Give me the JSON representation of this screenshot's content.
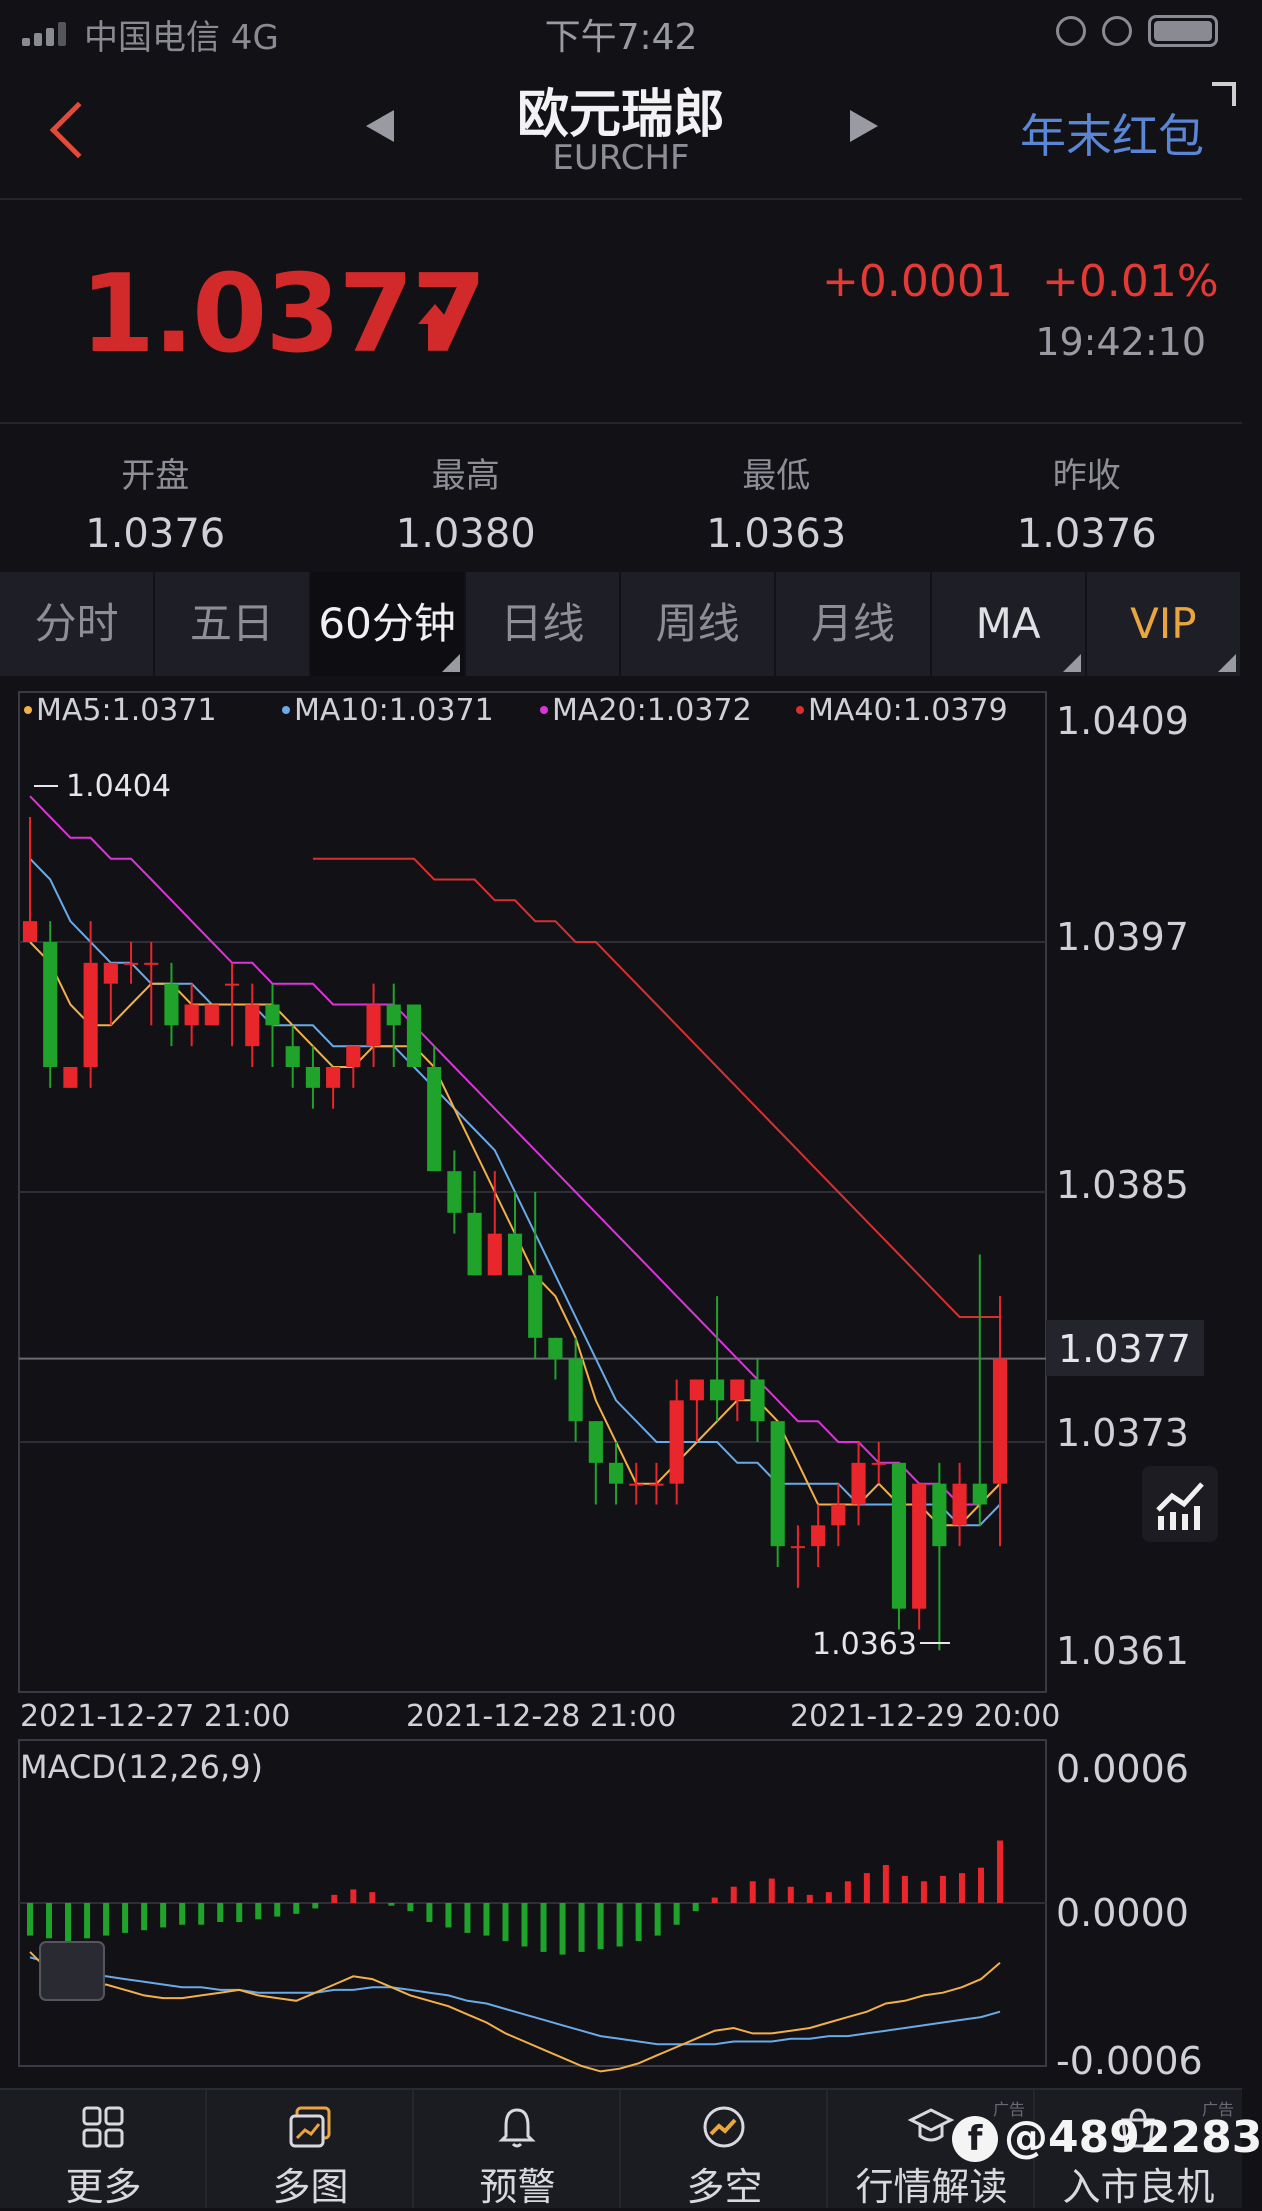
{
  "status_bar": {
    "carrier": "中国电信  4G",
    "time": "下午7:42"
  },
  "nav": {
    "title": "欧元瑞郎",
    "subtitle": "EURCHF",
    "promo": "年末红包"
  },
  "quote": {
    "price": "1.0377",
    "change_abs": "+0.0001",
    "change_pct": "+0.01%",
    "time": "19:42:10"
  },
  "stats": [
    {
      "label": "开盘",
      "value": "1.0376"
    },
    {
      "label": "最高",
      "value": "1.0380"
    },
    {
      "label": "最低",
      "value": "1.0363"
    },
    {
      "label": "昨收",
      "value": "1.0376"
    }
  ],
  "tabs": [
    "分时",
    "五日",
    "60分钟",
    "日线",
    "周线",
    "月线",
    "MA",
    "VIP"
  ],
  "colors": {
    "up": "#e8262c",
    "down": "#1fa32a",
    "ma5": "#f2b04a",
    "ma10": "#6aaae6",
    "ma20": "#d935d9",
    "ma40": "#d83030"
  },
  "chart_data": [
    {
      "type": "candlestick",
      "legend": [
        "MA5:1.0371",
        "MA10:1.0371",
        "MA20:1.0372",
        "MA40:1.0379"
      ],
      "y_ticks": [
        "1.0409",
        "1.0397",
        "1.0385",
        "1.0373",
        "1.0361"
      ],
      "ylim": [
        1.0361,
        1.0409
      ],
      "current_price_label": "1.0377",
      "current_price": 1.0377,
      "max_label": "1.0404",
      "min_label": "1.0363",
      "x_labels": [
        "2021-12-27 21:00",
        "2021-12-28 21:00",
        "2021-12-29 20:00"
      ],
      "candles": [
        [
          1.0397,
          1.0403,
          1.0398,
          1.0397
        ],
        [
          1.0397,
          1.0398,
          1.0391,
          1.039
        ],
        [
          1.039,
          1.0391,
          1.0391,
          1.039
        ],
        [
          1.0391,
          1.0398,
          1.0396,
          1.039
        ],
        [
          1.0395,
          1.0396,
          1.0396,
          1.0393
        ],
        [
          1.0396,
          1.0397,
          1.0396,
          1.0395
        ],
        [
          1.0396,
          1.0397,
          1.0396,
          1.0393
        ],
        [
          1.0395,
          1.0396,
          1.0393,
          1.0392
        ],
        [
          1.0393,
          1.0395,
          1.0394,
          1.0392
        ],
        [
          1.0393,
          1.0394,
          1.0394,
          1.0393
        ],
        [
          1.0395,
          1.0396,
          1.0395,
          1.0392
        ],
        [
          1.0392,
          1.0395,
          1.0394,
          1.0391
        ],
        [
          1.0394,
          1.0395,
          1.0393,
          1.0391
        ],
        [
          1.0392,
          1.0393,
          1.0391,
          1.039
        ],
        [
          1.0391,
          1.0392,
          1.039,
          1.0389
        ],
        [
          1.039,
          1.0391,
          1.0391,
          1.0389
        ],
        [
          1.0391,
          1.0392,
          1.0392,
          1.039
        ],
        [
          1.0392,
          1.0395,
          1.0394,
          1.0391
        ],
        [
          1.0394,
          1.0395,
          1.0393,
          1.0391
        ],
        [
          1.0394,
          1.0394,
          1.0391,
          1.0391
        ],
        [
          1.0391,
          1.0392,
          1.0386,
          1.0386
        ],
        [
          1.0386,
          1.0387,
          1.0384,
          1.0383
        ],
        [
          1.0384,
          1.0386,
          1.0381,
          1.0381
        ],
        [
          1.0381,
          1.0386,
          1.0383,
          1.0381
        ],
        [
          1.0383,
          1.0385,
          1.0381,
          1.0381
        ],
        [
          1.0381,
          1.0385,
          1.0378,
          1.0377
        ],
        [
          1.0378,
          1.0378,
          1.0377,
          1.0376
        ],
        [
          1.0377,
          1.0378,
          1.0374,
          1.0373
        ],
        [
          1.0374,
          1.0374,
          1.0372,
          1.037
        ],
        [
          1.0372,
          1.0373,
          1.0371,
          1.037
        ],
        [
          1.0371,
          1.0372,
          1.0371,
          1.037
        ],
        [
          1.0371,
          1.0372,
          1.0371,
          1.037
        ],
        [
          1.0371,
          1.0376,
          1.0375,
          1.037
        ],
        [
          1.0375,
          1.0376,
          1.0376,
          1.0373
        ],
        [
          1.0376,
          1.038,
          1.0375,
          1.0374
        ],
        [
          1.0375,
          1.0376,
          1.0376,
          1.0374
        ],
        [
          1.0376,
          1.0377,
          1.0374,
          1.0373
        ],
        [
          1.0374,
          1.0374,
          1.0368,
          1.0367
        ],
        [
          1.0368,
          1.0369,
          1.0368,
          1.0366
        ],
        [
          1.0368,
          1.037,
          1.0369,
          1.0367
        ],
        [
          1.0369,
          1.0371,
          1.037,
          1.0368
        ],
        [
          1.037,
          1.0373,
          1.0372,
          1.0369
        ],
        [
          1.0372,
          1.0373,
          1.0372,
          1.0371
        ],
        [
          1.0372,
          1.0372,
          1.0365,
          1.0364
        ],
        [
          1.0365,
          1.0371,
          1.0371,
          1.0364
        ],
        [
          1.0371,
          1.0372,
          1.0368,
          1.0363
        ],
        [
          1.0369,
          1.0372,
          1.0371,
          1.0368
        ],
        [
          1.0371,
          1.0382,
          1.037,
          1.0369
        ],
        [
          1.0371,
          1.038,
          1.0377,
          1.0368
        ]
      ],
      "ma5": [
        1.0397,
        1.0396,
        1.0394,
        1.0393,
        1.0393,
        1.0394,
        1.0395,
        1.0395,
        1.0394,
        1.0394,
        1.0394,
        1.0394,
        1.0394,
        1.0393,
        1.0392,
        1.0391,
        1.0391,
        1.0392,
        1.0392,
        1.0392,
        1.0391,
        1.0389,
        1.0387,
        1.0385,
        1.0383,
        1.0381,
        1.038,
        1.0378,
        1.0375,
        1.0373,
        1.0371,
        1.0371,
        1.0372,
        1.0373,
        1.0374,
        1.0375,
        1.0375,
        1.0374,
        1.0372,
        1.037,
        1.037,
        1.037,
        1.0371,
        1.037,
        1.037,
        1.0369,
        1.0369,
        1.037,
        1.0371
      ],
      "ma10": [
        1.0401,
        1.04,
        1.0398,
        1.0397,
        1.0396,
        1.0396,
        1.0395,
        1.0395,
        1.0395,
        1.0394,
        1.0394,
        1.0394,
        1.0393,
        1.0393,
        1.0393,
        1.0392,
        1.0392,
        1.0392,
        1.0392,
        1.0391,
        1.039,
        1.0389,
        1.0388,
        1.0387,
        1.0385,
        1.0383,
        1.0381,
        1.0379,
        1.0377,
        1.0375,
        1.0374,
        1.0373,
        1.0373,
        1.0373,
        1.0373,
        1.0372,
        1.0372,
        1.0371,
        1.0371,
        1.0371,
        1.0371,
        1.037,
        1.037,
        1.037,
        1.037,
        1.037,
        1.0369,
        1.0369,
        1.037
      ],
      "ma20": [
        1.0404,
        1.0403,
        1.0402,
        1.0402,
        1.0401,
        1.0401,
        1.04,
        1.0399,
        1.0398,
        1.0397,
        1.0396,
        1.0396,
        1.0395,
        1.0395,
        1.0395,
        1.0394,
        1.0394,
        1.0394,
        1.0394,
        1.0393,
        1.0392,
        1.0391,
        1.039,
        1.0389,
        1.0388,
        1.0387,
        1.0386,
        1.0385,
        1.0384,
        1.0383,
        1.0382,
        1.0381,
        1.038,
        1.0379,
        1.0378,
        1.0377,
        1.0376,
        1.0375,
        1.0374,
        1.0374,
        1.0373,
        1.0373,
        1.0372,
        1.0372,
        1.0371,
        1.0371,
        1.037,
        1.037,
        1.0371
      ],
      "ma40": [
        1.0401,
        1.0401,
        1.0401,
        1.0401,
        1.0401,
        1.0401,
        1.04,
        1.04,
        1.04,
        1.0399,
        1.0399,
        1.0398,
        1.0398,
        1.0397,
        1.0397,
        1.0396,
        1.0395,
        1.0394,
        1.0393,
        1.0392,
        1.0391,
        1.039,
        1.0389,
        1.0388,
        1.0387,
        1.0386,
        1.0385,
        1.0384,
        1.0383,
        1.0382,
        1.0381,
        1.038,
        1.0379,
        1.0379,
        1.0379
      ],
      "ma40_start_index": 14
    },
    {
      "type": "macd",
      "title": "MACD(12,26,9)",
      "y_ticks": [
        "0.0006",
        "0.0000",
        "-0.0006"
      ],
      "ylim": [
        -0.0006,
        0.0006
      ],
      "histogram": [
        -0.00012,
        -0.00013,
        -0.00014,
        -0.00013,
        -0.00012,
        -0.00011,
        -0.0001,
        -9e-05,
        -8e-05,
        -8e-05,
        -7e-05,
        -7e-05,
        -6e-05,
        -5e-05,
        -4e-05,
        -2e-05,
        3e-05,
        5e-05,
        4e-05,
        -1e-05,
        -3e-05,
        -7e-05,
        -9e-05,
        -0.00011,
        -0.00012,
        -0.00014,
        -0.00016,
        -0.00018,
        -0.00019,
        -0.00018,
        -0.00017,
        -0.00016,
        -0.00014,
        -0.00012,
        -8e-05,
        -3e-05,
        2e-05,
        6e-05,
        8e-05,
        9e-05,
        6e-05,
        3e-05,
        4e-05,
        8e-05,
        0.00011,
        0.00014,
        0.0001,
        8e-05,
        0.0001,
        0.00011,
        0.00013,
        0.00023
      ],
      "dif": [
        -0.00018,
        -0.00025,
        -0.0003,
        -0.00031,
        -0.0003,
        -0.00032,
        -0.00034,
        -0.00035,
        -0.00035,
        -0.00034,
        -0.00033,
        -0.00032,
        -0.00034,
        -0.00035,
        -0.00036,
        -0.00033,
        -0.0003,
        -0.00027,
        -0.00028,
        -0.00031,
        -0.00034,
        -0.00036,
        -0.00038,
        -0.00041,
        -0.00044,
        -0.00048,
        -0.00051,
        -0.00054,
        -0.00057,
        -0.0006,
        -0.00062,
        -0.00061,
        -0.00059,
        -0.00056,
        -0.00053,
        -0.0005,
        -0.00047,
        -0.00046,
        -0.00048,
        -0.00048,
        -0.00047,
        -0.00046,
        -0.00044,
        -0.00042,
        -0.0004,
        -0.00037,
        -0.00036,
        -0.00034,
        -0.00033,
        -0.00031,
        -0.00028,
        -0.00022
      ],
      "dea": [
        -0.0002,
        -0.00022,
        -0.00024,
        -0.00026,
        -0.00027,
        -0.00028,
        -0.00029,
        -0.0003,
        -0.00031,
        -0.00031,
        -0.00032,
        -0.00032,
        -0.00033,
        -0.00033,
        -0.00033,
        -0.00033,
        -0.00032,
        -0.00032,
        -0.00031,
        -0.00031,
        -0.00032,
        -0.00033,
        -0.00034,
        -0.00036,
        -0.00037,
        -0.00039,
        -0.00041,
        -0.00043,
        -0.00045,
        -0.00047,
        -0.00049,
        -0.0005,
        -0.00051,
        -0.00052,
        -0.00052,
        -0.00052,
        -0.00052,
        -0.00051,
        -0.00051,
        -0.00051,
        -0.0005,
        -0.0005,
        -0.00049,
        -0.00049,
        -0.00048,
        -0.00047,
        -0.00046,
        -0.00045,
        -0.00044,
        -0.00043,
        -0.00042,
        -0.0004
      ]
    }
  ],
  "bottom_nav": [
    {
      "label": "更多",
      "icon": "grid-icon"
    },
    {
      "label": "多图",
      "icon": "multi-chart-icon"
    },
    {
      "label": "预警",
      "icon": "bell-icon"
    },
    {
      "label": "多空",
      "icon": "trend-circle-icon"
    },
    {
      "label": "行情解读",
      "icon": "graduation-cap-icon",
      "ad": "广告"
    },
    {
      "label": "入市良机",
      "icon": "bag-icon",
      "ad": "广告"
    }
  ],
  "watermark": "@4892283"
}
